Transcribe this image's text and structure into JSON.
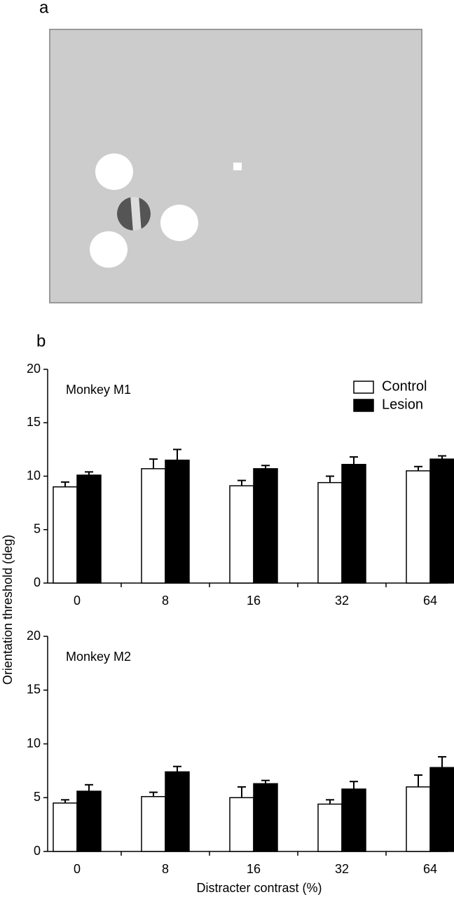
{
  "panel_labels": [
    "a",
    "b"
  ],
  "chart_data": [
    {
      "type": "bar",
      "annotation": "Monkey M1",
      "ylabel": "Orientation threshold (deg)",
      "categories": [
        "0",
        "8",
        "16",
        "32",
        "64"
      ],
      "series": [
        {
          "name": "Control",
          "color": "#ffffff",
          "values": [
            9.0,
            10.7,
            9.1,
            9.4,
            10.5
          ],
          "errors": [
            0.45,
            0.9,
            0.5,
            0.6,
            0.4
          ]
        },
        {
          "name": "Lesion",
          "color": "#000000",
          "values": [
            10.1,
            11.5,
            10.7,
            11.1,
            11.6
          ],
          "errors": [
            0.3,
            1.0,
            0.3,
            0.7,
            0.3
          ]
        }
      ],
      "ylim": [
        0,
        20
      ],
      "yticks": [
        0,
        5,
        10,
        15,
        20
      ],
      "legend": "upper right"
    },
    {
      "type": "bar",
      "annotation": "Monkey M2",
      "xlabel": "Distracter contrast (%)",
      "categories": [
        "0",
        "8",
        "16",
        "32",
        "64"
      ],
      "series": [
        {
          "name": "Control",
          "color": "#ffffff",
          "values": [
            4.5,
            5.1,
            5.0,
            4.4,
            6.0
          ],
          "errors": [
            0.3,
            0.4,
            1.0,
            0.4,
            1.1
          ]
        },
        {
          "name": "Lesion",
          "color": "#000000",
          "values": [
            5.6,
            7.4,
            6.3,
            5.8,
            7.8
          ],
          "errors": [
            0.6,
            0.5,
            0.3,
            0.7,
            1.0
          ]
        }
      ],
      "ylim": [
        0,
        20
      ],
      "yticks": [
        0,
        5,
        10,
        15,
        20
      ]
    }
  ]
}
